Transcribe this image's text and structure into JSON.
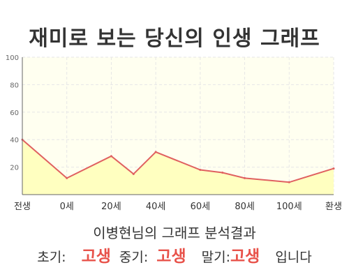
{
  "title": "재미로 보는 당신의 인생 그래프",
  "summary": {
    "name_line": "이병현님의 그래프 분석결과",
    "early_label": "초기:",
    "early_value": "고생",
    "middle_label": "중기:",
    "middle_value": "고생",
    "late_label": "말기:",
    "late_value": "고생",
    "ending": "입니다"
  },
  "chart_data": {
    "type": "area",
    "title": "재미로 보는 당신의 인생 그래프",
    "xlabel": "",
    "ylabel": "",
    "ylim": [
      0,
      100
    ],
    "y_ticks": [
      20,
      40,
      60,
      80,
      100
    ],
    "x_tick_labels": [
      "전생",
      "0세",
      "20세",
      "40세",
      "60세",
      "80세",
      "100세",
      "환생"
    ],
    "x_ticks": [
      -20,
      0,
      20,
      40,
      60,
      80,
      100,
      120
    ],
    "grid": true,
    "legend": "none",
    "series": [
      {
        "x": [
          -20,
          0,
          20,
          30,
          40,
          60,
          70,
          80,
          100,
          120
        ],
        "y": [
          40,
          12,
          28,
          15,
          31,
          18,
          16,
          12,
          9,
          19
        ]
      }
    ],
    "colors": {
      "line": "#e06060",
      "fill": "#ffffc0",
      "plot_background": "#fffff0",
      "grid": "#e6e6e6"
    }
  }
}
